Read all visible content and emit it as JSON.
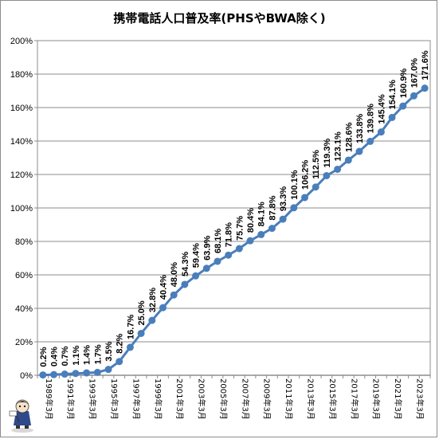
{
  "chart_data": {
    "type": "line",
    "title": "携帯電話人口普及率(PHSやBWA除く)",
    "xlabel": "",
    "ylabel": "",
    "ylim": [
      0,
      200
    ],
    "y_ticks": [
      "0%",
      "20%",
      "40%",
      "60%",
      "80%",
      "100%",
      "120%",
      "140%",
      "160%",
      "180%",
      "200%"
    ],
    "grid": true,
    "legend": "none",
    "line_color": "#4a7ebb",
    "x": [
      "1989年3月",
      "1990年3月",
      "1991年3月",
      "1992年3月",
      "1993年3月",
      "1994年3月",
      "1995年3月",
      "1996年3月",
      "1997年3月",
      "1998年3月",
      "1999年3月",
      "2000年3月",
      "2001年3月",
      "2002年3月",
      "2003年3月",
      "2004年3月",
      "2005年3月",
      "2006年3月",
      "2007年3月",
      "2008年3月",
      "2009年3月",
      "2010年3月",
      "2011年3月",
      "2012年3月",
      "2013年3月",
      "2014年3月",
      "2015年3月",
      "2016年3月",
      "2017年3月",
      "2018年3月",
      "2019年3月",
      "2020年3月",
      "2021年3月",
      "2022年3月",
      "2023年3月",
      "2024年3月"
    ],
    "x_tick_labels": [
      "1989年3月",
      "1991年3月",
      "1993年3月",
      "1995年3月",
      "1997年3月",
      "1999年3月",
      "2001年3月",
      "2003年3月",
      "2005年3月",
      "2007年3月",
      "2009年3月",
      "2011年3月",
      "2013年3月",
      "2015年3月",
      "2017年3月",
      "2019年3月",
      "2021年3月",
      "2023年3月"
    ],
    "values": [
      0.2,
      0.4,
      0.7,
      1.1,
      1.4,
      1.7,
      3.5,
      8.2,
      16.7,
      25.0,
      32.8,
      40.4,
      48.0,
      54.3,
      59.4,
      63.9,
      68.1,
      71.8,
      75.7,
      80.4,
      84.1,
      87.8,
      93.3,
      100.1,
      106.2,
      112.5,
      119.3,
      123.1,
      128.6,
      133.8,
      139.8,
      145.4,
      154.1,
      160.9,
      167.0,
      171.6
    ],
    "data_labels": [
      "0.2%",
      "0.4%",
      "0.7%",
      "1.1%",
      "1.4%",
      "1.7%",
      "3.5%",
      "8.2%",
      "16.7%",
      "25.0%",
      "32.8%",
      "40.4%",
      "48.0%",
      "54.3%",
      "59.4%",
      "63.9%",
      "68.1%",
      "71.8%",
      "75.7%",
      "80.4%",
      "84.1%",
      "87.8%",
      "93.3%",
      "100.1%",
      "106.2%",
      "112.5%",
      "119.3%",
      "123.1%",
      "128.6%",
      "133.8%",
      "139.8%",
      "145.4%",
      "154.1%",
      "160.9%",
      "167.0%",
      "171.6%"
    ]
  }
}
